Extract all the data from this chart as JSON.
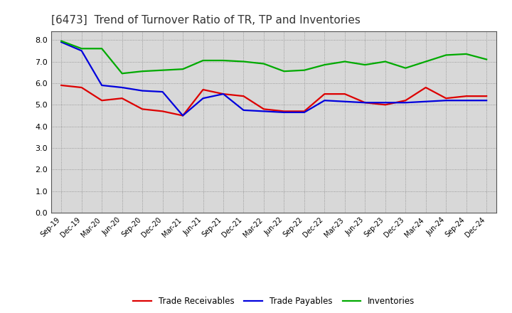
{
  "title": "[6473]  Trend of Turnover Ratio of TR, TP and Inventories",
  "x_labels": [
    "Sep-19",
    "Dec-19",
    "Mar-20",
    "Jun-20",
    "Sep-20",
    "Dec-20",
    "Mar-21",
    "Jun-21",
    "Sep-21",
    "Dec-21",
    "Mar-22",
    "Jun-22",
    "Sep-22",
    "Dec-22",
    "Mar-23",
    "Jun-23",
    "Sep-23",
    "Dec-23",
    "Mar-24",
    "Jun-24",
    "Sep-24",
    "Dec-24"
  ],
  "trade_receivables": [
    5.9,
    5.8,
    5.2,
    5.3,
    4.8,
    4.7,
    4.5,
    5.7,
    5.5,
    5.4,
    4.8,
    4.7,
    4.7,
    5.5,
    5.5,
    5.1,
    5.0,
    5.2,
    5.8,
    5.3,
    5.4,
    5.4
  ],
  "trade_payables": [
    7.9,
    7.5,
    5.9,
    5.8,
    5.65,
    5.6,
    4.5,
    5.3,
    5.5,
    4.75,
    4.7,
    4.65,
    4.65,
    5.2,
    5.15,
    5.1,
    5.1,
    5.1,
    5.15,
    5.2,
    5.2,
    5.2
  ],
  "inventories": [
    7.95,
    7.6,
    7.6,
    6.45,
    6.55,
    6.6,
    6.65,
    7.05,
    7.05,
    7.0,
    6.9,
    6.55,
    6.6,
    6.85,
    7.0,
    6.85,
    7.0,
    6.7,
    7.0,
    7.3,
    7.35,
    7.1
  ],
  "tr_color": "#dd0000",
  "tp_color": "#0000dd",
  "inv_color": "#00aa00",
  "ylim": [
    0.0,
    8.4
  ],
  "yticks": [
    0.0,
    1.0,
    2.0,
    3.0,
    4.0,
    5.0,
    6.0,
    7.0,
    8.0
  ],
  "bg_color": "#d8d8d8",
  "legend_tr": "Trade Receivables",
  "legend_tp": "Trade Payables",
  "legend_inv": "Inventories",
  "linewidth": 1.6,
  "title_color": "#333333",
  "title_fontsize": 11
}
